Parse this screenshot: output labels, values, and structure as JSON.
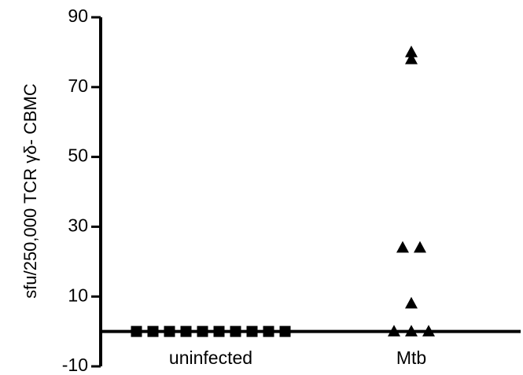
{
  "chart_data": {
    "type": "scatter",
    "title": "",
    "xlabel": "",
    "ylabel": "sfu/250,000 TCR γδ- CBMC",
    "ylim": [
      -10,
      90
    ],
    "yticks": [
      -10,
      10,
      30,
      50,
      70,
      90
    ],
    "grid": false,
    "categories": [
      "uninfected",
      "Mtb"
    ],
    "series": [
      {
        "category": "uninfected",
        "marker": "square",
        "color": "#000000",
        "values": [
          0,
          0,
          0,
          0,
          0,
          0,
          0,
          0,
          0,
          0
        ]
      },
      {
        "category": "Mtb",
        "marker": "triangle",
        "color": "#000000",
        "values": [
          80,
          78,
          24,
          24,
          8,
          0,
          0,
          0
        ]
      }
    ]
  }
}
